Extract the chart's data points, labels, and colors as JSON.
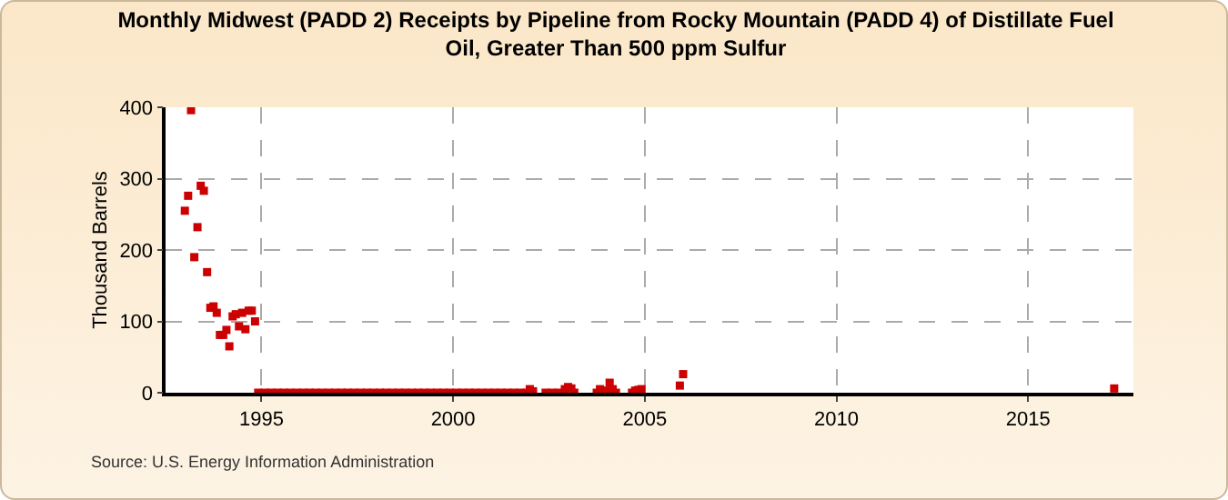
{
  "chart_data": {
    "type": "scatter",
    "title": "Monthly Midwest (PADD 2) Receipts by Pipeline from Rocky Mountain (PADD 4) of Distillate Fuel Oil, Greater Than 500 ppm Sulfur",
    "ylabel": "Thousand Barrels",
    "annotations": [
      "Source: U.S. Energy Information Administration"
    ],
    "x": [
      "1993-01",
      "1993-02",
      "1993-03",
      "1993-04",
      "1993-05",
      "1993-06",
      "1993-07",
      "1993-08",
      "1993-09",
      "1993-10",
      "1993-11",
      "1993-12",
      "1994-01",
      "1994-02",
      "1994-03",
      "1994-04",
      "1994-05",
      "1994-06",
      "1994-07",
      "1994-08",
      "1994-09",
      "1994-10",
      "1994-11",
      "1994-12",
      "1995-02",
      "1995-04",
      "1995-06",
      "1995-08",
      "1995-10",
      "1995-12",
      "1996-02",
      "1996-04",
      "1996-06",
      "1996-08",
      "1996-10",
      "1996-12",
      "1997-02",
      "1997-04",
      "1997-06",
      "1997-08",
      "1997-10",
      "1997-12",
      "1998-02",
      "1998-04",
      "1998-06",
      "1998-08",
      "1998-10",
      "1998-12",
      "1999-02",
      "1999-04",
      "1999-06",
      "1999-08",
      "1999-10",
      "1999-12",
      "2000-02",
      "2000-04",
      "2000-06",
      "2000-08",
      "2000-10",
      "2000-12",
      "2001-02",
      "2001-04",
      "2001-06",
      "2001-08",
      "2001-10",
      "2001-12",
      "2002-01",
      "2002-02",
      "2002-06",
      "2002-08",
      "2002-10",
      "2002-12",
      "2003-01",
      "2003-02",
      "2003-03",
      "2003-10",
      "2003-11",
      "2004-01",
      "2004-02",
      "2004-03",
      "2004-04",
      "2004-09",
      "2004-10",
      "2004-11",
      "2004-12",
      "2005-12",
      "2006-01",
      "2017-04"
    ],
    "series": [
      {
        "color": "#cc0000",
        "values": [
          255,
          276,
          396,
          190,
          232,
          290,
          283,
          169,
          119,
          121,
          112,
          81,
          81,
          88,
          65,
          107,
          110,
          93,
          112,
          89,
          115,
          115,
          100,
          0,
          0,
          0,
          0,
          0,
          0,
          0,
          0,
          0,
          0,
          0,
          0,
          0,
          0,
          0,
          0,
          0,
          0,
          0,
          0,
          0,
          0,
          0,
          0,
          0,
          0,
          0,
          0,
          0,
          0,
          0,
          0,
          0,
          0,
          0,
          0,
          0,
          0,
          0,
          0,
          0,
          0,
          0,
          5,
          2,
          0,
          0,
          0,
          5,
          8,
          6,
          0,
          0,
          5,
          3,
          14,
          5,
          0,
          0,
          3,
          4,
          5,
          10,
          26,
          6
        ]
      }
    ],
    "xlim": [
      "1992-07",
      "2017-10"
    ],
    "xticks": [
      {
        "value": "1995-01",
        "label": "1995"
      },
      {
        "value": "2000-01",
        "label": "2000"
      },
      {
        "value": "2005-01",
        "label": "2005"
      },
      {
        "value": "2010-01",
        "label": "2010"
      },
      {
        "value": "2015-01",
        "label": "2015"
      }
    ],
    "ylim": [
      0,
      400
    ],
    "yticks": [
      0,
      100,
      200,
      300,
      400
    ],
    "grid": true,
    "marker": "square"
  }
}
